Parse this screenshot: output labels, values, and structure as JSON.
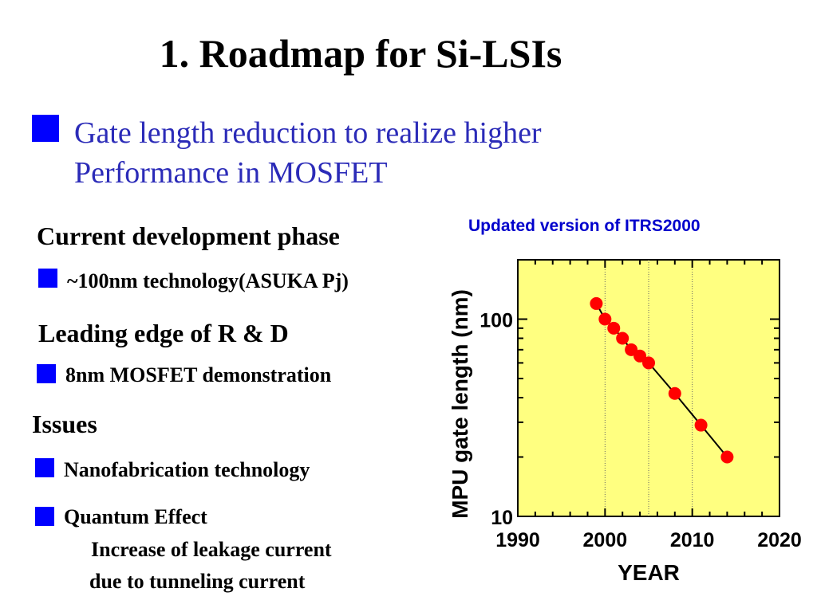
{
  "slide": {
    "title": "1. Roadmap for Si-LSIs",
    "subtitle_line1": "Gate length reduction to realize higher",
    "subtitle_line2": "Performance in MOSFET",
    "sections": [
      {
        "heading": "Current development phase",
        "item": "~100nm technology(ASUKA Pj)"
      },
      {
        "heading": "Leading edge of R & D",
        "item": "8nm MOSFET demonstration"
      },
      {
        "heading": "Issues",
        "item": "Nanofabrication technology"
      }
    ],
    "quantum": {
      "item": "Quantum Effect",
      "sub_line1": "Increase of leakage current",
      "sub_line2": "due to tunneling current"
    }
  },
  "chart_data": {
    "type": "scatter",
    "title": "Updated version of ITRS2000",
    "xlabel": "YEAR",
    "ylabel": "MPU gate length (nm)",
    "xlim": [
      1990,
      2020
    ],
    "ylim": [
      10,
      200
    ],
    "yscale": "log",
    "xticks": [
      1990,
      2000,
      2010,
      2020
    ],
    "yticks": [
      10,
      100
    ],
    "vertical_gridlines": [
      2000,
      2005,
      2010
    ],
    "background": "#ffff80",
    "marker_color": "#ff0000",
    "line_color": "#000000",
    "series": [
      {
        "x": [
          1999,
          2000,
          2001,
          2002,
          2003,
          2004,
          2005,
          2008,
          2011,
          2014
        ],
        "y": [
          120,
          100,
          90,
          80,
          70,
          65,
          60,
          42,
          29,
          20
        ]
      }
    ]
  }
}
